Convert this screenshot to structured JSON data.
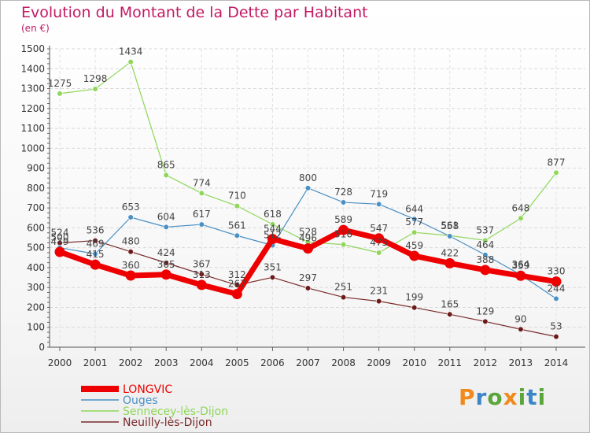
{
  "title": "Evolution du Montant de la Dette par Habitant",
  "subtitle": "(en €)",
  "logo_text": "Proxiti",
  "chart_data": {
    "type": "line",
    "title": "Evolution du Montant de la Dette par Habitant",
    "subtitle": "(en €)",
    "x": [
      "2000",
      "2001",
      "2002",
      "2003",
      "2004",
      "2005",
      "2006",
      "2007",
      "2008",
      "2009",
      "2010",
      "2011",
      "2012",
      "2013",
      "2014"
    ],
    "ylim": [
      0,
      1500
    ],
    "yticks": [
      0,
      100,
      200,
      300,
      400,
      500,
      600,
      700,
      800,
      900,
      1000,
      1100,
      1200,
      1300,
      1400,
      1500
    ],
    "grid": true,
    "legend_position": "bottom-left",
    "series": [
      {
        "name": "LONGVIC",
        "color": "#ee0000",
        "values": [
          479,
          415,
          360,
          365,
          313,
          267,
          544,
          496,
          589,
          547,
          459,
          422,
          388,
          359,
          330
        ]
      },
      {
        "name": "Ouges",
        "color": "#4a90c4",
        "values": [
          500,
          469,
          653,
          604,
          617,
          561,
          512,
          800,
          728,
          719,
          644,
          558,
          464,
          364,
          244
        ]
      },
      {
        "name": "Sennecey-lès-Dijon",
        "color": "#8fd65a",
        "values": [
          1275,
          1298,
          1434,
          865,
          774,
          710,
          618,
          528,
          516,
          475,
          577,
          561,
          537,
          648,
          877
        ]
      },
      {
        "name": "Neuilly-lès-Dijon",
        "color": "#7a2a2a",
        "values": [
          524,
          536,
          480,
          424,
          367,
          312,
          351,
          297,
          251,
          231,
          199,
          165,
          129,
          90,
          53
        ]
      }
    ]
  }
}
